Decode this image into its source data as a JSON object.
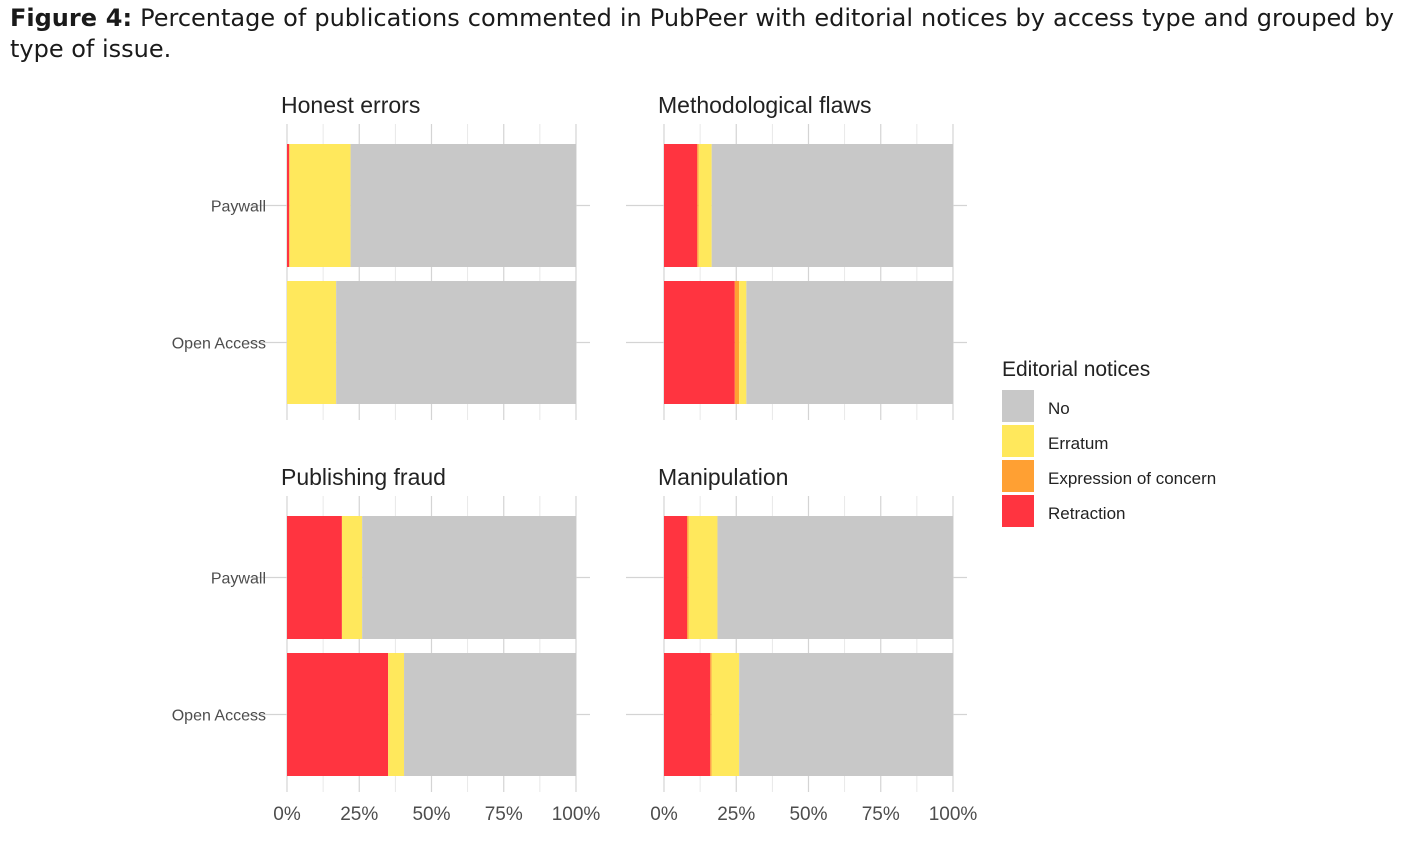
{
  "caption": {
    "label": "Figure 4:",
    "text": " Percentage of publications commented in PubPeer with editorial notices by access type and grouped by type of issue."
  },
  "chart_data": {
    "type": "bar",
    "orientation": "horizontal",
    "stacked": true,
    "facets": [
      "Honest errors",
      "Methodological flaws",
      "Publishing fraud",
      "Manipulation"
    ],
    "categories": [
      "Paywall",
      "Open Access"
    ],
    "xlim": [
      0,
      100
    ],
    "x_ticks": [
      "0%",
      "25%",
      "50%",
      "75%",
      "100%"
    ],
    "grid": true,
    "legend": {
      "title": "Editorial notices",
      "position": "right",
      "items": [
        {
          "name": "No",
          "color": "#c8c8c8"
        },
        {
          "name": "Erratum",
          "color": "#ffe85c"
        },
        {
          "name": "Expression of concern",
          "color": "#ffa033"
        },
        {
          "name": "Retraction",
          "color": "#ff3440"
        }
      ]
    },
    "stack_order": [
      "Retraction",
      "Expression of concern",
      "Erratum",
      "No"
    ],
    "panels": [
      {
        "title": "Honest errors",
        "bars": [
          {
            "category": "Paywall",
            "Retraction": 0.8,
            "Expression of concern": 0,
            "Erratum": 21.2,
            "No": 78
          },
          {
            "category": "Open Access",
            "Retraction": 0,
            "Expression of concern": 0,
            "Erratum": 17,
            "No": 83
          }
        ]
      },
      {
        "title": "Methodological flaws",
        "bars": [
          {
            "category": "Paywall",
            "Retraction": 11.5,
            "Expression of concern": 0.5,
            "Erratum": 4.5,
            "No": 83.5
          },
          {
            "category": "Open Access",
            "Retraction": 24.5,
            "Expression of concern": 1.5,
            "Erratum": 2.5,
            "No": 71.5
          }
        ]
      },
      {
        "title": "Publishing fraud",
        "bars": [
          {
            "category": "Paywall",
            "Retraction": 19,
            "Expression of concern": 0,
            "Erratum": 7,
            "No": 74
          },
          {
            "category": "Open Access",
            "Retraction": 35,
            "Expression of concern": 0,
            "Erratum": 5.5,
            "No": 59.5
          }
        ]
      },
      {
        "title": "Manipulation",
        "bars": [
          {
            "category": "Paywall",
            "Retraction": 8,
            "Expression of concern": 0.5,
            "Erratum": 10,
            "No": 81.5
          },
          {
            "category": "Open Access",
            "Retraction": 16,
            "Expression of concern": 0.5,
            "Erratum": 9.5,
            "No": 74
          }
        ]
      }
    ]
  }
}
